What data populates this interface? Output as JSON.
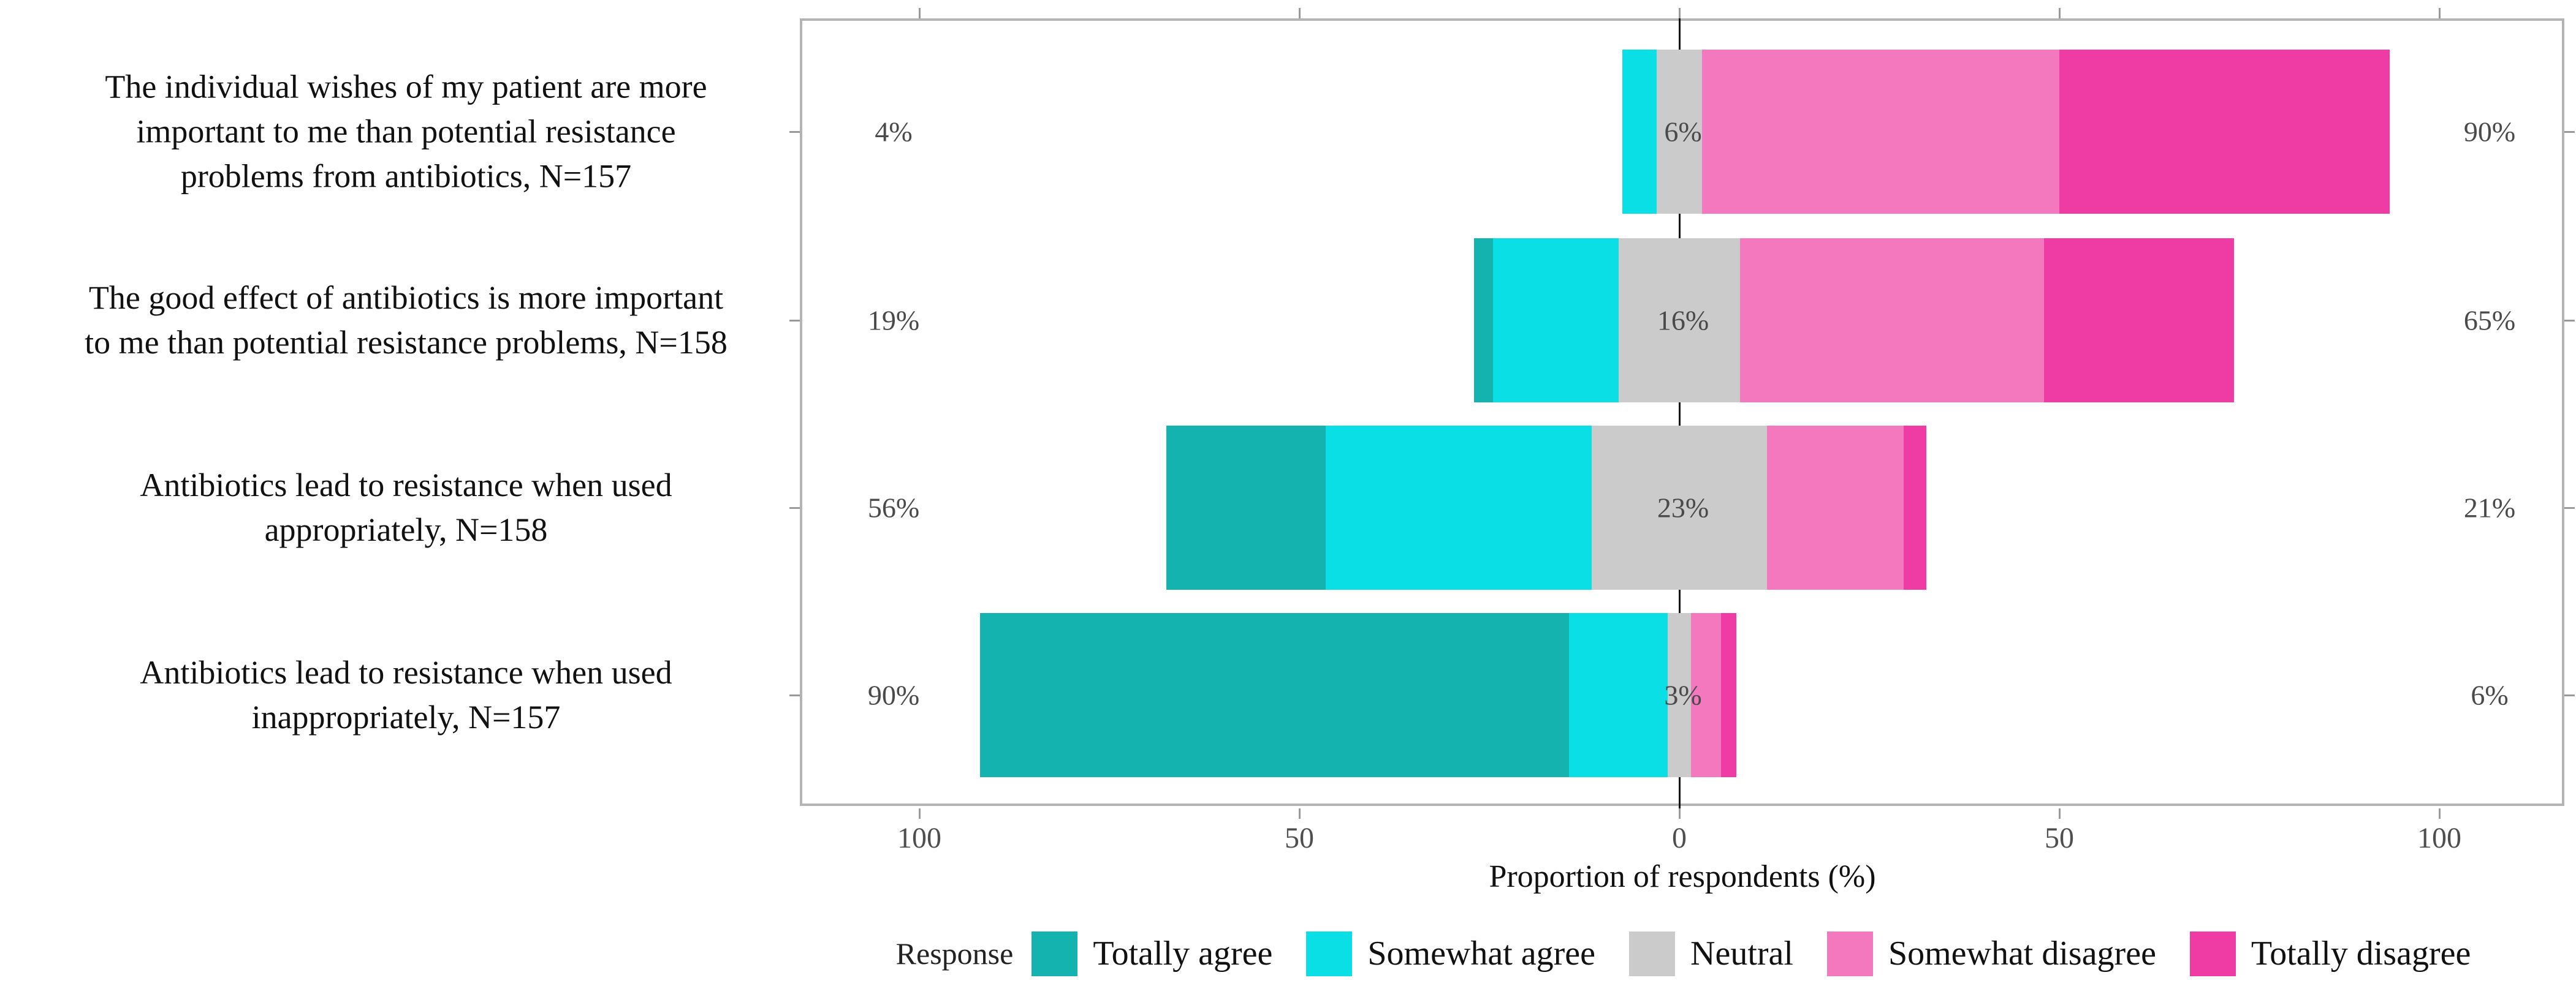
{
  "chart_data": {
    "type": "bar",
    "subtype": "diverging_stacked_likert",
    "title": "",
    "xlabel": "Proportion of respondents (%)",
    "x_tick_labels": [
      "100",
      "50",
      "0",
      "50",
      "100"
    ],
    "x_tick_values": [
      -100,
      -50,
      0,
      50,
      100
    ],
    "xlim": [
      -115,
      117
    ],
    "grid": "off",
    "legend_position": "bottom",
    "legend_title": "Response",
    "series_names": [
      "Totally agree",
      "Somewhat agree",
      "Neutral",
      "Somewhat disagree",
      "Totally disagree"
    ],
    "colors": {
      "totally_agree": "#15b3b0",
      "somewhat_agree": "#0adfe6",
      "neutral": "#cbcbcb",
      "somewhat_disagree": "#f378be",
      "totally_disagree": "#ee3ca4",
      "panel_border": "#b4b4b4",
      "zero_line": "#151515",
      "tick": "#9a9a9a",
      "pct_text": "#4a4a4a"
    },
    "rows": [
      {
        "label": "The individual wishes of my patient are more\nimportant to me than potential resistance\nproblems from antibiotics, N=157",
        "agree_label": "4%",
        "neutral_label": "6%",
        "disagree_label": "90%",
        "segments": {
          "totally_agree": 0,
          "somewhat_agree": 4.5,
          "neutral": 6,
          "somewhat_disagree": 47,
          "totally_disagree": 43.5
        }
      },
      {
        "label": "The good effect of antibiotics is more important\nto me than potential resistance problems, N=158",
        "agree_label": "19%",
        "neutral_label": "16%",
        "disagree_label": "65%",
        "segments": {
          "totally_agree": 2.5,
          "somewhat_agree": 16.5,
          "neutral": 16,
          "somewhat_disagree": 40,
          "totally_disagree": 25
        }
      },
      {
        "label": "Antibiotics lead to resistance when used\nappropriately, N=158",
        "agree_label": "56%",
        "neutral_label": "23%",
        "disagree_label": "21%",
        "segments": {
          "totally_agree": 21,
          "somewhat_agree": 35,
          "neutral": 23,
          "somewhat_disagree": 18,
          "totally_disagree": 3
        }
      },
      {
        "label": "Antibiotics lead to resistance when used\ninappropriately, N=157",
        "agree_label": "90%",
        "neutral_label": "3%",
        "disagree_label": "6%",
        "segments": {
          "totally_agree": 77.5,
          "somewhat_agree": 13,
          "neutral": 3,
          "somewhat_disagree": 4,
          "totally_disagree": 2
        }
      }
    ]
  },
  "axis": {
    "title": "Proportion of respondents (%)"
  },
  "legend": {
    "title": "Response",
    "items": [
      {
        "label": "Totally agree",
        "color": "#15b3b0"
      },
      {
        "label": "Somewhat agree",
        "color": "#0adfe6"
      },
      {
        "label": "Neutral",
        "color": "#cbcbcb"
      },
      {
        "label": "Somewhat disagree",
        "color": "#f378be"
      },
      {
        "label": "Totally disagree",
        "color": "#ee3ca4"
      }
    ]
  }
}
